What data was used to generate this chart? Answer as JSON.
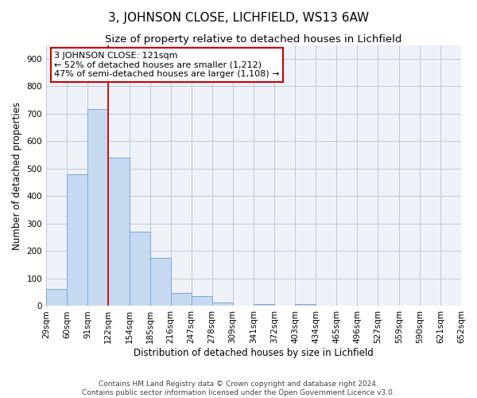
{
  "title": "3, JOHNSON CLOSE, LICHFIELD, WS13 6AW",
  "subtitle": "Size of property relative to detached houses in Lichfield",
  "xlabel": "Distribution of detached houses by size in Lichfield",
  "ylabel": "Number of detached properties",
  "footer_lines": [
    "Contains HM Land Registry data © Crown copyright and database right 2024.",
    "Contains public sector information licensed under the Open Government Licence v3.0."
  ],
  "bin_edges": [
    29,
    60,
    91,
    122,
    154,
    185,
    216,
    247,
    278,
    309,
    341,
    372,
    403,
    434,
    465,
    496,
    527,
    559,
    590,
    621,
    652
  ],
  "bin_labels": [
    "29sqm",
    "60sqm",
    "91sqm",
    "122sqm",
    "154sqm",
    "185sqm",
    "216sqm",
    "247sqm",
    "278sqm",
    "309sqm",
    "341sqm",
    "372sqm",
    "403sqm",
    "434sqm",
    "465sqm",
    "496sqm",
    "527sqm",
    "559sqm",
    "590sqm",
    "621sqm",
    "652sqm"
  ],
  "bar_heights": [
    62,
    479,
    716,
    541,
    270,
    176,
    48,
    35,
    14,
    0,
    8,
    0,
    7,
    0,
    0,
    0,
    0,
    0,
    0,
    0
  ],
  "bar_color": "#c6d9f1",
  "bar_edge_color": "#7da6d0",
  "property_line_x": 122,
  "property_line_color": "#cc0000",
  "annotation_title": "3 JOHNSON CLOSE: 121sqm",
  "annotation_line1": "← 52% of detached houses are smaller (1,212)",
  "annotation_line2": "47% of semi-detached houses are larger (1,108) →",
  "annotation_box_color": "#cc0000",
  "ylim": [
    0,
    950
  ],
  "yticks": [
    0,
    100,
    200,
    300,
    400,
    500,
    600,
    700,
    800,
    900
  ],
  "grid_color": "#c0c8d8",
  "bg_color": "#eef2f8",
  "title_fontsize": 11,
  "subtitle_fontsize": 9.5,
  "axis_label_fontsize": 8.5,
  "tick_fontsize": 7.5,
  "annotation_fontsize": 8,
  "footer_fontsize": 6.5
}
